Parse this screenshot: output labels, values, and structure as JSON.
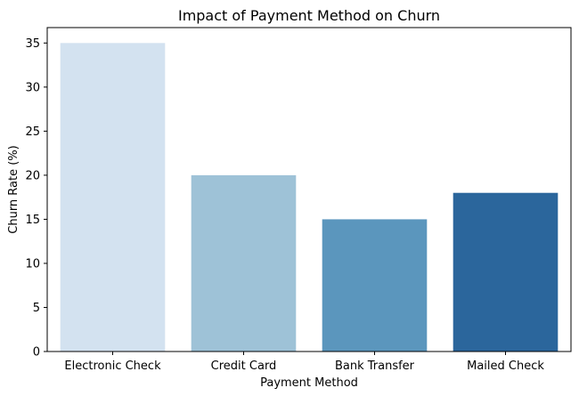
{
  "chart_data": {
    "type": "bar",
    "title": "Impact of Payment Method on Churn",
    "xlabel": "Payment Method",
    "ylabel": "Churn Rate (%)",
    "categories": [
      "Electronic Check",
      "Credit Card",
      "Bank Transfer",
      "Mailed Check"
    ],
    "values": [
      35,
      20,
      15,
      18
    ],
    "colors": [
      "#d3e2f0",
      "#9ec2d7",
      "#5b96bd",
      "#2b669c"
    ],
    "ylim": [
      0,
      36.75
    ],
    "yticks": [
      0,
      5,
      10,
      15,
      20,
      25,
      30,
      35
    ],
    "grid": false,
    "legend": false
  }
}
